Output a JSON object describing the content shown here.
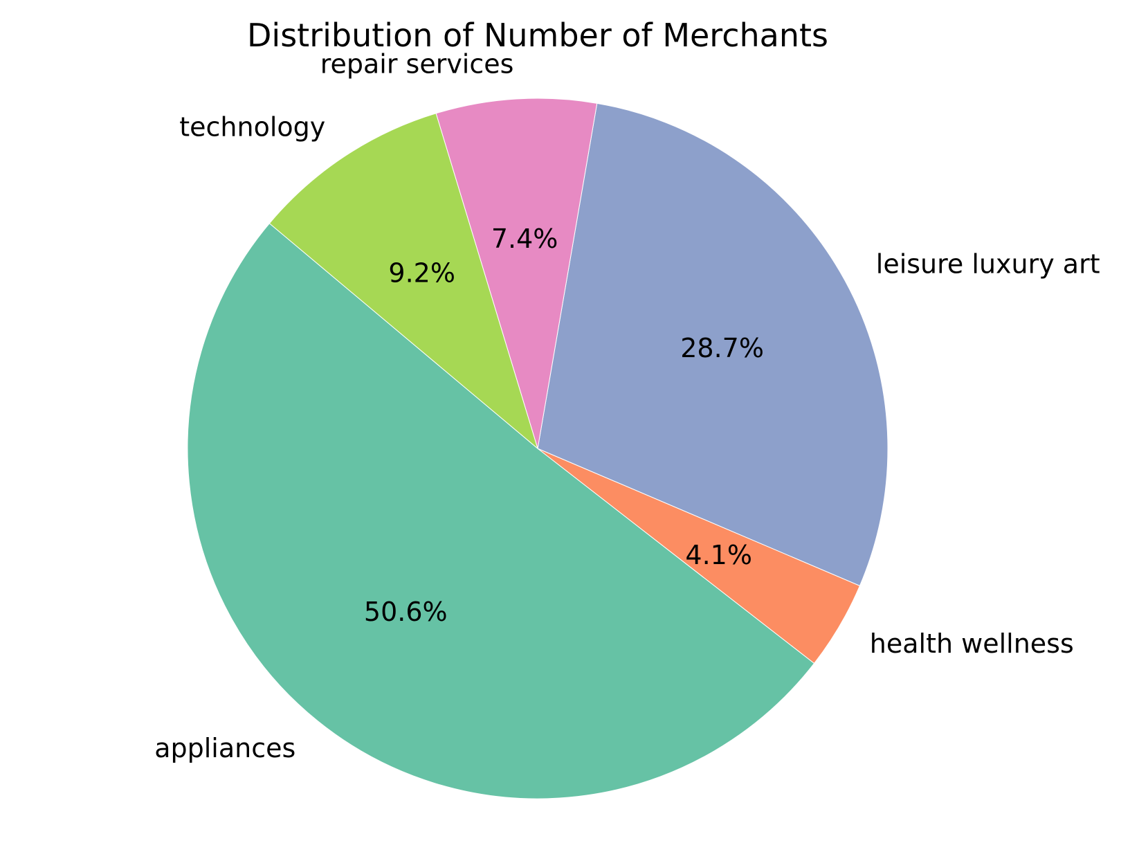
{
  "chart_data": {
    "type": "pie",
    "title": "Distribution of Number of Merchants",
    "slices": [
      {
        "label": "appliances",
        "value": 50.6,
        "pct_label": "50.6%",
        "color": "#66c2a5"
      },
      {
        "label": "health wellness",
        "value": 4.1,
        "pct_label": "4.1%",
        "color": "#fc8d62"
      },
      {
        "label": "leisure luxury art",
        "value": 28.7,
        "pct_label": "28.7%",
        "color": "#8da0cb"
      },
      {
        "label": "repair services",
        "value": 7.4,
        "pct_label": "7.4%",
        "color": "#e78ac3"
      },
      {
        "label": "technology",
        "value": 9.2,
        "pct_label": "9.2%",
        "color": "#a6d854"
      }
    ],
    "start_angle": 140,
    "direction": "counterclockwise"
  }
}
